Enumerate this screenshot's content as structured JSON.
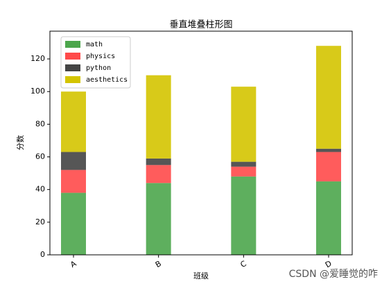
{
  "chart_data": {
    "type": "stacked_bar",
    "title": "垂直堆叠柱形图",
    "xlabel": "班级",
    "ylabel": "分数",
    "categories": [
      "A",
      "B",
      "C",
      "D"
    ],
    "series": [
      {
        "name": "math",
        "color": "#4ca64c",
        "values": [
          38,
          44,
          48,
          45
        ]
      },
      {
        "name": "physics",
        "color": "#ff4a4a",
        "values": [
          14,
          11,
          6,
          18
        ]
      },
      {
        "name": "python",
        "color": "#444444",
        "values": [
          11,
          4,
          3,
          2
        ]
      },
      {
        "name": "aesthetics",
        "color": "#d4c400",
        "values": [
          37,
          51,
          46,
          63
        ]
      }
    ],
    "ylim": [
      0,
      137
    ],
    "yticks": [
      0,
      20,
      40,
      60,
      80,
      100,
      120
    ],
    "legend": "upper left",
    "watermark": "CSDN @爱睡觉的咋"
  }
}
